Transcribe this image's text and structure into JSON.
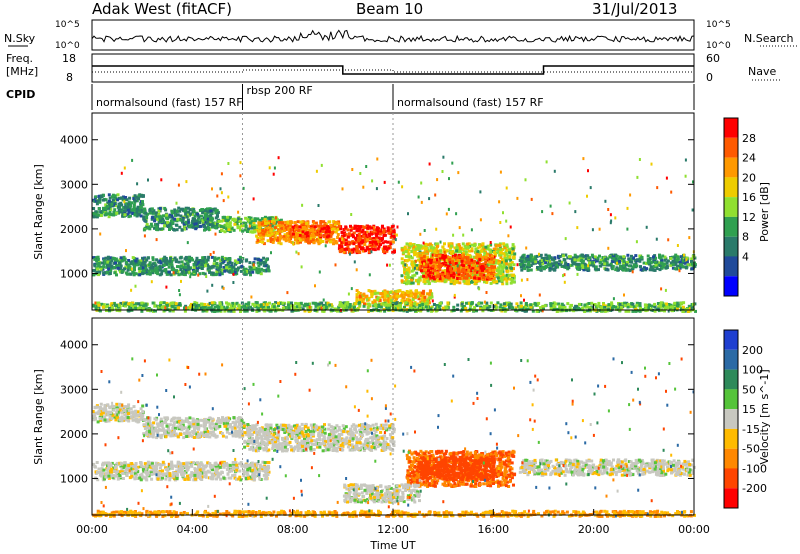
{
  "header": {
    "station": "Adak West (fitACF)",
    "beam": "Beam 10",
    "date": "31/Jul/2013"
  },
  "left_labels": {
    "nsky": "N.Sky",
    "freq": "Freq.",
    "freq_unit": "[MHz]",
    "cpid": "CPID"
  },
  "right_labels": {
    "nsearch": "N.Search",
    "nave": "Nave"
  },
  "ticks": {
    "noise_left": [
      "10^5",
      "10^0"
    ],
    "noise_right": [
      "10^5",
      "10^0"
    ],
    "freq_left": [
      "18",
      "8"
    ],
    "freq_right": [
      "60",
      "0"
    ]
  },
  "cpid_segments": [
    {
      "label": "normalsound (fast) 157 RF",
      "start_h": 0,
      "end_h": 6
    },
    {
      "label": "rbsp 200 RF",
      "start_h": 6,
      "end_h": 12
    },
    {
      "label": "normalsound (fast) 157 RF",
      "start_h": 12,
      "end_h": 24
    }
  ],
  "power_colorbar": {
    "title": "Power [dB]",
    "levels": [
      "28",
      "24",
      "20",
      "16",
      "12",
      "8",
      "4"
    ],
    "colors": [
      "#ff0000",
      "#ff5a00",
      "#ff9900",
      "#eecc00",
      "#90e030",
      "#30a050",
      "#2a7a6a",
      "#204a9a",
      "#0000ff"
    ]
  },
  "velocity_colorbar": {
    "title": "Velocity [m s^-1]",
    "levels": [
      "200",
      "100",
      "50",
      "15",
      "-15",
      "-50",
      "-100",
      "-200"
    ],
    "colors": [
      "#1f3fd0",
      "#2b6aa5",
      "#2e8a5a",
      "#55c43a",
      "#c8c8c0",
      "#ffbb00",
      "#ff8800",
      "#ff4500",
      "#ff0000"
    ]
  },
  "chart_data": {
    "type": "heatmap",
    "xlabel": "Time UT",
    "ylabel": "Slant Range [km]",
    "x_ticks": [
      "00:00",
      "04:00",
      "08:00",
      "12:00",
      "16:00",
      "20:00",
      "00:00"
    ],
    "y_ticks": [
      "1000",
      "2000",
      "3000",
      "4000"
    ],
    "xlim": [
      0,
      24
    ],
    "ylim": [
      180,
      4600
    ],
    "panels": [
      {
        "name": "Power",
        "units": "dB",
        "regions": [
          {
            "t0": 0.0,
            "t1": 2.0,
            "r0": 2300,
            "r1": 2800,
            "value": 8
          },
          {
            "t0": 2.0,
            "t1": 5.0,
            "r0": 2000,
            "r1": 2500,
            "value": 8
          },
          {
            "t0": 5.0,
            "t1": 7.5,
            "r0": 1950,
            "r1": 2300,
            "value": 12
          },
          {
            "t0": 6.5,
            "t1": 9.8,
            "r0": 1700,
            "r1": 2200,
            "value": 22
          },
          {
            "t0": 7.8,
            "t1": 9.5,
            "r0": 1850,
            "r1": 2100,
            "value": 26
          },
          {
            "t0": 9.8,
            "t1": 12.0,
            "r0": 1500,
            "r1": 2100,
            "value": 28
          },
          {
            "t0": 0.0,
            "t1": 7.0,
            "r0": 1000,
            "r1": 1400,
            "value": 8
          },
          {
            "t0": 12.3,
            "t1": 16.8,
            "r0": 800,
            "r1": 1700,
            "value": 16
          },
          {
            "t0": 13.0,
            "t1": 16.0,
            "r0": 900,
            "r1": 1450,
            "value": 26
          },
          {
            "t0": 17.0,
            "t1": 24.0,
            "r0": 1100,
            "r1": 1450,
            "value": 8
          },
          {
            "t0": 10.5,
            "t1": 13.5,
            "r0": 300,
            "r1": 650,
            "value": 20
          },
          {
            "t0": 0.0,
            "t1": 24.0,
            "r0": 180,
            "r1": 380,
            "value": 12
          }
        ]
      },
      {
        "name": "Velocity",
        "units": "m s^-1",
        "regions": [
          {
            "t0": 0.0,
            "t1": 2.0,
            "r0": 2300,
            "r1": 2700,
            "value": 0
          },
          {
            "t0": 2.0,
            "t1": 6.0,
            "r0": 1950,
            "r1": 2400,
            "value": 0
          },
          {
            "t0": 6.0,
            "t1": 12.0,
            "r0": 1650,
            "r1": 2250,
            "value": 0
          },
          {
            "t0": 0.0,
            "t1": 7.0,
            "r0": 1000,
            "r1": 1400,
            "value": 0
          },
          {
            "t0": 12.5,
            "t1": 16.8,
            "r0": 850,
            "r1": 1650,
            "value": -100
          },
          {
            "t0": 13.0,
            "t1": 16.0,
            "r0": 1000,
            "r1": 1500,
            "value": -150
          },
          {
            "t0": 17.0,
            "t1": 24.0,
            "r0": 1100,
            "r1": 1450,
            "value": 0
          },
          {
            "t0": 10.0,
            "t1": 13.0,
            "r0": 500,
            "r1": 900,
            "value": 0
          },
          {
            "t0": 0.0,
            "t1": 24.0,
            "r0": 180,
            "r1": 300,
            "value": -50
          }
        ]
      }
    ]
  }
}
